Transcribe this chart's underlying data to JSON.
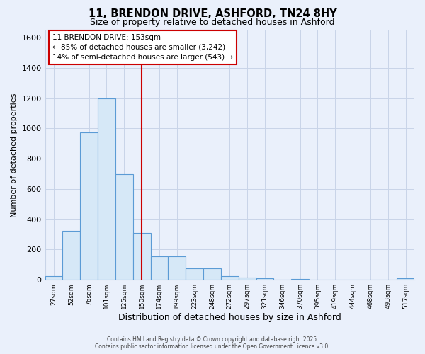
{
  "title1": "11, BRENDON DRIVE, ASHFORD, TN24 8HY",
  "title2": "Size of property relative to detached houses in Ashford",
  "xlabel": "Distribution of detached houses by size in Ashford",
  "ylabel": "Number of detached properties",
  "categories": [
    "27sqm",
    "52sqm",
    "76sqm",
    "101sqm",
    "125sqm",
    "150sqm",
    "174sqm",
    "199sqm",
    "223sqm",
    "248sqm",
    "272sqm",
    "297sqm",
    "321sqm",
    "346sqm",
    "370sqm",
    "395sqm",
    "419sqm",
    "444sqm",
    "468sqm",
    "493sqm",
    "517sqm"
  ],
  "values": [
    25,
    325,
    975,
    1200,
    700,
    310,
    155,
    155,
    75,
    75,
    25,
    15,
    10,
    0,
    5,
    0,
    0,
    0,
    0,
    0,
    10
  ],
  "bar_color": "#d6e8f7",
  "bar_edge_color": "#5b9bd5",
  "vline_color": "#cc0000",
  "vline_index": 5,
  "annotation_line1": "11 BRENDON DRIVE: 153sqm",
  "annotation_line2": "← 85% of detached houses are smaller (3,242)",
  "annotation_line3": "14% of semi-detached houses are larger (543) →",
  "annotation_box_color": "#ffffff",
  "annotation_box_edge": "#cc0000",
  "ylim": [
    0,
    1650
  ],
  "yticks": [
    0,
    200,
    400,
    600,
    800,
    1000,
    1200,
    1400,
    1600
  ],
  "grid_color": "#c8d4e8",
  "bg_color": "#eaf0fb",
  "plot_bg": "#eaf0fb",
  "footer_line1": "Contains HM Land Registry data © Crown copyright and database right 2025.",
  "footer_line2": "Contains public sector information licensed under the Open Government Licence v3.0."
}
